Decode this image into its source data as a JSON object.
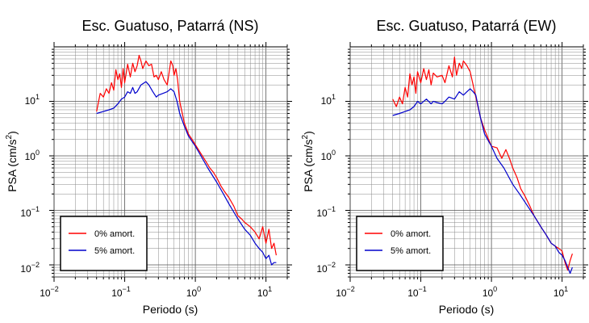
{
  "charts": [
    {
      "title": "Esc. Guatuso, Patarrá (NS)",
      "xlabel": "Periodo (s)",
      "ylabel_main": "PSA (cm/s",
      "ylabel_sup": "2",
      "ylabel_tail": ")"
    },
    {
      "title": "Esc. Guatuso, Patarrá (EW)",
      "xlabel": "Periodo (s)",
      "ylabel_main": "PSA (cm/s",
      "ylabel_sup": "2",
      "ylabel_tail": ")"
    }
  ],
  "legend_entries": [
    "0% amort.",
    "5% amort."
  ],
  "series_colors": [
    "#ff0000",
    "#0000cc"
  ],
  "x_ticks": [
    {
      "base": "10",
      "exp": "−2"
    },
    {
      "base": "10",
      "exp": "−1"
    },
    {
      "base": "10",
      "exp": "0"
    },
    {
      "base": "10",
      "exp": "1"
    }
  ],
  "y_ticks": [
    {
      "base": "10",
      "exp": "−2"
    },
    {
      "base": "10",
      "exp": "−1"
    },
    {
      "base": "10",
      "exp": "0",
      "text": "10"
    },
    {
      "base": "10",
      "exp": "1",
      "text": "10"
    }
  ],
  "chart_data": [
    {
      "type": "line",
      "title": "Esc. Guatuso, Patarrá (NS)",
      "xlabel": "Periodo (s)",
      "ylabel": "PSA (cm/s2)",
      "xscale": "log",
      "yscale": "log",
      "xlim": [
        0.01,
        20
      ],
      "ylim": [
        0.006,
        100
      ],
      "grid": true,
      "legend": "bottom-left",
      "series": [
        {
          "name": "0% amort.",
          "color": "#ff0000",
          "x": [
            0.04,
            0.045,
            0.05,
            0.055,
            0.06,
            0.065,
            0.07,
            0.075,
            0.08,
            0.085,
            0.09,
            0.095,
            0.1,
            0.11,
            0.12,
            0.13,
            0.14,
            0.15,
            0.16,
            0.17,
            0.18,
            0.2,
            0.22,
            0.24,
            0.26,
            0.28,
            0.3,
            0.33,
            0.36,
            0.4,
            0.45,
            0.48,
            0.5,
            0.53,
            0.56,
            0.6,
            0.7,
            0.8,
            0.9,
            1.0,
            1.2,
            1.4,
            1.6,
            1.8,
            2.0,
            2.3,
            2.6,
            3.0,
            3.5,
            4.0,
            4.5,
            5.0,
            6.0,
            7.0,
            8.0,
            9.0,
            10.0,
            11.0,
            12.0,
            13.0,
            14.0
          ],
          "y": [
            6.5,
            14,
            12,
            17,
            14,
            22,
            16,
            38,
            25,
            32,
            18,
            40,
            22,
            48,
            28,
            50,
            35,
            45,
            70,
            55,
            40,
            55,
            45,
            48,
            28,
            30,
            25,
            35,
            25,
            20,
            55,
            45,
            30,
            40,
            25,
            10,
            4.0,
            2.5,
            2.0,
            1.6,
            1.1,
            0.8,
            0.6,
            0.5,
            0.4,
            0.28,
            0.22,
            0.17,
            0.12,
            0.08,
            0.07,
            0.06,
            0.05,
            0.04,
            0.03,
            0.05,
            0.025,
            0.045,
            0.02,
            0.025,
            0.015
          ]
        },
        {
          "name": "5% amort.",
          "color": "#0000cc",
          "x": [
            0.04,
            0.05,
            0.06,
            0.07,
            0.08,
            0.09,
            0.1,
            0.11,
            0.12,
            0.13,
            0.14,
            0.15,
            0.17,
            0.2,
            0.22,
            0.25,
            0.28,
            0.3,
            0.35,
            0.4,
            0.45,
            0.5,
            0.55,
            0.6,
            0.7,
            0.8,
            1.0,
            1.2,
            1.5,
            2.0,
            2.5,
            3.0,
            4.0,
            5.0,
            6.0,
            7.0,
            8.0,
            9.0,
            10.0,
            11.0,
            12.0,
            13.0,
            14.0
          ],
          "y": [
            6.0,
            6.5,
            7.0,
            7.5,
            9.0,
            11.0,
            12.0,
            15.0,
            14.0,
            18.0,
            14.0,
            15.0,
            20.0,
            23.0,
            20.0,
            15.0,
            12.0,
            13.0,
            14.0,
            15.0,
            17.0,
            15.0,
            10.0,
            6.0,
            3.5,
            2.3,
            1.5,
            1.0,
            0.6,
            0.33,
            0.2,
            0.13,
            0.07,
            0.045,
            0.035,
            0.025,
            0.02,
            0.017,
            0.013,
            0.015,
            0.01,
            0.011,
            0.011
          ]
        }
      ]
    },
    {
      "type": "line",
      "title": "Esc. Guatuso, Patarrá (EW)",
      "xlabel": "Periodo (s)",
      "ylabel": "PSA (cm/s2)",
      "xscale": "log",
      "yscale": "log",
      "xlim": [
        0.01,
        20
      ],
      "ylim": [
        0.006,
        100
      ],
      "grid": true,
      "legend": "bottom-left",
      "series": [
        {
          "name": "0% amort.",
          "color": "#ff0000",
          "x": [
            0.04,
            0.045,
            0.05,
            0.055,
            0.06,
            0.065,
            0.07,
            0.075,
            0.08,
            0.085,
            0.09,
            0.1,
            0.11,
            0.12,
            0.13,
            0.14,
            0.15,
            0.17,
            0.2,
            0.22,
            0.25,
            0.28,
            0.3,
            0.32,
            0.35,
            0.38,
            0.4,
            0.45,
            0.5,
            0.55,
            0.6,
            0.7,
            0.8,
            1.0,
            1.2,
            1.4,
            1.6,
            1.8,
            2.0,
            2.3,
            2.6,
            3.0,
            3.5,
            4.0,
            5.0,
            6.0,
            7.0,
            8.0,
            9.0,
            10.0,
            11.0,
            12.0,
            13.0,
            14.0
          ],
          "y": [
            11,
            8,
            12,
            9,
            18,
            12,
            32,
            20,
            28,
            14,
            35,
            22,
            40,
            25,
            38,
            20,
            33,
            28,
            30,
            22,
            45,
            28,
            65,
            30,
            50,
            40,
            55,
            45,
            35,
            20,
            12,
            5.0,
            3.0,
            1.5,
            1.4,
            0.9,
            1.3,
            0.9,
            0.6,
            0.4,
            0.25,
            0.18,
            0.12,
            0.08,
            0.05,
            0.035,
            0.025,
            0.022,
            0.02,
            0.018,
            0.011,
            0.008,
            0.012,
            0.016
          ]
        },
        {
          "name": "5% amort.",
          "color": "#0000cc",
          "x": [
            0.04,
            0.05,
            0.06,
            0.07,
            0.08,
            0.09,
            0.1,
            0.12,
            0.14,
            0.15,
            0.17,
            0.2,
            0.22,
            0.25,
            0.3,
            0.35,
            0.4,
            0.45,
            0.5,
            0.55,
            0.6,
            0.7,
            0.8,
            1.0,
            1.2,
            1.5,
            2.0,
            2.5,
            3.0,
            4.0,
            5.0,
            6.0,
            7.0,
            8.0,
            9.0,
            10.0,
            11.0,
            12.0,
            13.0,
            14.0
          ],
          "y": [
            5.5,
            6.0,
            6.5,
            7.0,
            8.0,
            10.0,
            9.0,
            11.0,
            9.0,
            10.0,
            9.5,
            9.0,
            10.0,
            12.0,
            11.0,
            15.0,
            13.0,
            15.0,
            17.0,
            15.0,
            13.0,
            5.0,
            2.5,
            1.5,
            0.9,
            0.6,
            0.3,
            0.2,
            0.14,
            0.08,
            0.05,
            0.035,
            0.025,
            0.022,
            0.017,
            0.015,
            0.012,
            0.009,
            0.007,
            0.009
          ]
        }
      ]
    }
  ]
}
